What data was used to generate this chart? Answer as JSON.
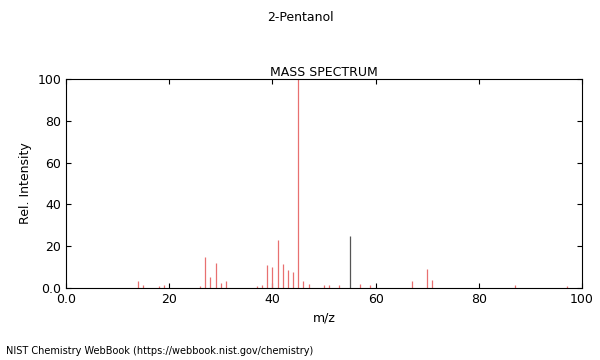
{
  "title1": "2-Pentanol",
  "title2": "MASS SPECTRUM",
  "xlabel": "m/z",
  "ylabel": "Rel. Intensity",
  "xlim": [
    0.0,
    100
  ],
  "ylim": [
    0.0,
    100
  ],
  "xticks": [
    0.0,
    20,
    40,
    60,
    80,
    100
  ],
  "yticks": [
    0.0,
    20,
    40,
    60,
    80,
    100
  ],
  "footnote": "NIST Chemistry WebBook (https://webbook.nist.gov/chemistry)",
  "peaks_red": [
    [
      14,
      3.5
    ],
    [
      15,
      1.2
    ],
    [
      18,
      1.0
    ],
    [
      19,
      1.5
    ],
    [
      26,
      1.0
    ],
    [
      27,
      15.0
    ],
    [
      28,
      5.5
    ],
    [
      29,
      12.0
    ],
    [
      30,
      2.5
    ],
    [
      31,
      3.5
    ],
    [
      37,
      1.0
    ],
    [
      38,
      1.5
    ],
    [
      39,
      11.0
    ],
    [
      40,
      10.0
    ],
    [
      41,
      23.0
    ],
    [
      42,
      11.5
    ],
    [
      43,
      8.5
    ],
    [
      44,
      7.5
    ],
    [
      45,
      100.0
    ],
    [
      46,
      3.5
    ],
    [
      47,
      2.0
    ],
    [
      50,
      1.5
    ],
    [
      51,
      1.5
    ],
    [
      53,
      1.5
    ],
    [
      57,
      2.0
    ],
    [
      59,
      1.5
    ],
    [
      67,
      3.5
    ],
    [
      70,
      9.0
    ],
    [
      71,
      4.0
    ],
    [
      87,
      1.5
    ],
    [
      97,
      1.0
    ]
  ],
  "peaks_dark": [
    [
      55,
      25.0
    ]
  ],
  "bar_color_red": "#e87070",
  "bar_color_dark": "#555555",
  "background_color": "#ffffff"
}
